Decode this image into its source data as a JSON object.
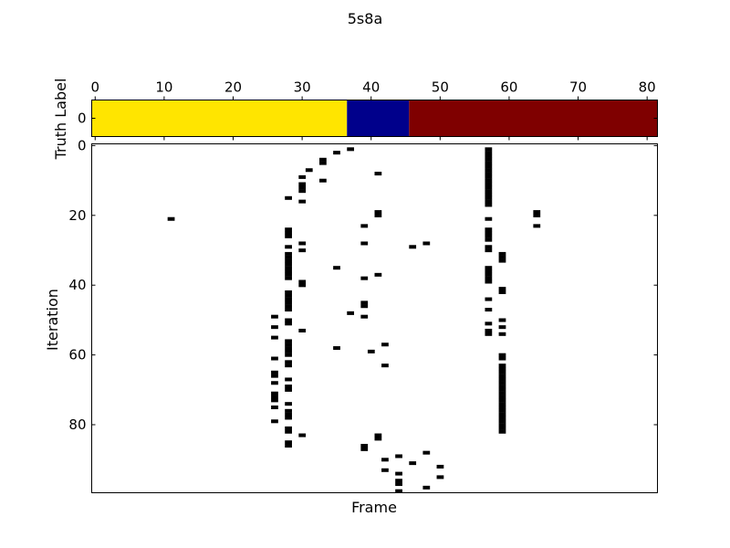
{
  "chart_data": [
    {
      "type": "heatmap",
      "title": "5s8a",
      "ylabel": "Truth Label",
      "xlim": [
        -0.5,
        81.5
      ],
      "x_ticks": [
        0,
        10,
        20,
        30,
        40,
        50,
        60,
        70,
        80
      ],
      "y_ticks": [
        0
      ],
      "segments": [
        {
          "start": -0.5,
          "end": 36.5,
          "color": "#ffe500"
        },
        {
          "start": 36.5,
          "end": 45.5,
          "color": "#00008b"
        },
        {
          "start": 45.5,
          "end": 81.5,
          "color": "#7f0000"
        }
      ]
    },
    {
      "type": "heatmap",
      "xlabel": "Frame",
      "ylabel": "Iteration",
      "ylim": [
        -0.5,
        99.5
      ],
      "xlim": [
        -0.5,
        81.5
      ],
      "y_ticks": [
        0,
        20,
        40,
        60,
        80
      ],
      "cell_color": "#000000",
      "cells": [
        [
          37,
          1
        ],
        [
          35,
          2
        ],
        [
          33,
          4
        ],
        [
          33,
          5
        ],
        [
          31,
          7
        ],
        [
          41,
          8
        ],
        [
          30,
          9
        ],
        [
          33,
          10
        ],
        [
          30,
          11
        ],
        [
          30,
          12
        ],
        [
          30,
          13
        ],
        [
          57,
          1
        ],
        [
          57,
          2
        ],
        [
          57,
          3
        ],
        [
          57,
          4
        ],
        [
          57,
          5
        ],
        [
          57,
          6
        ],
        [
          57,
          7
        ],
        [
          57,
          8
        ],
        [
          57,
          9
        ],
        [
          57,
          10
        ],
        [
          57,
          11
        ],
        [
          57,
          12
        ],
        [
          57,
          13
        ],
        [
          57,
          14
        ],
        [
          57,
          15
        ],
        [
          57,
          16
        ],
        [
          57,
          17
        ],
        [
          28,
          15
        ],
        [
          30,
          16
        ],
        [
          41,
          19
        ],
        [
          41,
          20
        ],
        [
          64,
          19
        ],
        [
          64,
          20
        ],
        [
          11,
          21
        ],
        [
          57,
          21
        ],
        [
          39,
          23
        ],
        [
          64,
          23
        ],
        [
          28,
          24
        ],
        [
          28,
          25
        ],
        [
          28,
          26
        ],
        [
          57,
          24
        ],
        [
          57,
          25
        ],
        [
          57,
          26
        ],
        [
          57,
          27
        ],
        [
          30,
          28
        ],
        [
          39,
          28
        ],
        [
          48,
          28
        ],
        [
          28,
          29
        ],
        [
          46,
          29
        ],
        [
          57,
          29
        ],
        [
          30,
          30
        ],
        [
          57,
          30
        ],
        [
          28,
          31
        ],
        [
          28,
          32
        ],
        [
          28,
          33
        ],
        [
          28,
          34
        ],
        [
          28,
          35
        ],
        [
          28,
          36
        ],
        [
          28,
          37
        ],
        [
          28,
          38
        ],
        [
          59,
          31
        ],
        [
          59,
          32
        ],
        [
          59,
          33
        ],
        [
          35,
          35
        ],
        [
          57,
          35
        ],
        [
          57,
          36
        ],
        [
          57,
          37
        ],
        [
          57,
          38
        ],
        [
          57,
          39
        ],
        [
          41,
          37
        ],
        [
          39,
          38
        ],
        [
          30,
          39
        ],
        [
          30,
          40
        ],
        [
          59,
          41
        ],
        [
          59,
          42
        ],
        [
          28,
          42
        ],
        [
          28,
          43
        ],
        [
          28,
          44
        ],
        [
          28,
          45
        ],
        [
          28,
          46
        ],
        [
          28,
          47
        ],
        [
          57,
          44
        ],
        [
          39,
          45
        ],
        [
          39,
          46
        ],
        [
          57,
          47
        ],
        [
          37,
          48
        ],
        [
          26,
          49
        ],
        [
          39,
          49
        ],
        [
          28,
          50
        ],
        [
          28,
          51
        ],
        [
          59,
          50
        ],
        [
          57,
          51
        ],
        [
          26,
          52
        ],
        [
          59,
          52
        ],
        [
          57,
          53
        ],
        [
          57,
          54
        ],
        [
          30,
          53
        ],
        [
          59,
          54
        ],
        [
          26,
          55
        ],
        [
          28,
          56
        ],
        [
          28,
          57
        ],
        [
          28,
          58
        ],
        [
          28,
          59
        ],
        [
          28,
          60
        ],
        [
          42,
          57
        ],
        [
          35,
          58
        ],
        [
          40,
          59
        ],
        [
          59,
          60
        ],
        [
          59,
          61
        ],
        [
          26,
          61
        ],
        [
          28,
          62
        ],
        [
          28,
          63
        ],
        [
          42,
          63
        ],
        [
          59,
          63
        ],
        [
          59,
          64
        ],
        [
          59,
          65
        ],
        [
          59,
          66
        ],
        [
          59,
          67
        ],
        [
          59,
          68
        ],
        [
          59,
          69
        ],
        [
          59,
          70
        ],
        [
          59,
          71
        ],
        [
          59,
          72
        ],
        [
          59,
          73
        ],
        [
          59,
          74
        ],
        [
          59,
          75
        ],
        [
          59,
          76
        ],
        [
          59,
          77
        ],
        [
          59,
          78
        ],
        [
          59,
          79
        ],
        [
          59,
          80
        ],
        [
          59,
          81
        ],
        [
          59,
          82
        ],
        [
          26,
          65
        ],
        [
          26,
          66
        ],
        [
          28,
          67
        ],
        [
          26,
          68
        ],
        [
          28,
          69
        ],
        [
          28,
          70
        ],
        [
          26,
          71
        ],
        [
          26,
          72
        ],
        [
          26,
          73
        ],
        [
          28,
          74
        ],
        [
          26,
          75
        ],
        [
          28,
          76
        ],
        [
          28,
          77
        ],
        [
          28,
          78
        ],
        [
          26,
          79
        ],
        [
          28,
          81
        ],
        [
          28,
          82
        ],
        [
          30,
          83
        ],
        [
          41,
          83
        ],
        [
          41,
          84
        ],
        [
          28,
          85
        ],
        [
          28,
          86
        ],
        [
          39,
          86
        ],
        [
          39,
          87
        ],
        [
          48,
          88
        ],
        [
          44,
          89
        ],
        [
          42,
          90
        ],
        [
          46,
          91
        ],
        [
          50,
          92
        ],
        [
          42,
          93
        ],
        [
          44,
          94
        ],
        [
          50,
          95
        ],
        [
          44,
          96
        ],
        [
          44,
          97
        ],
        [
          48,
          98
        ],
        [
          44,
          99
        ]
      ]
    }
  ]
}
